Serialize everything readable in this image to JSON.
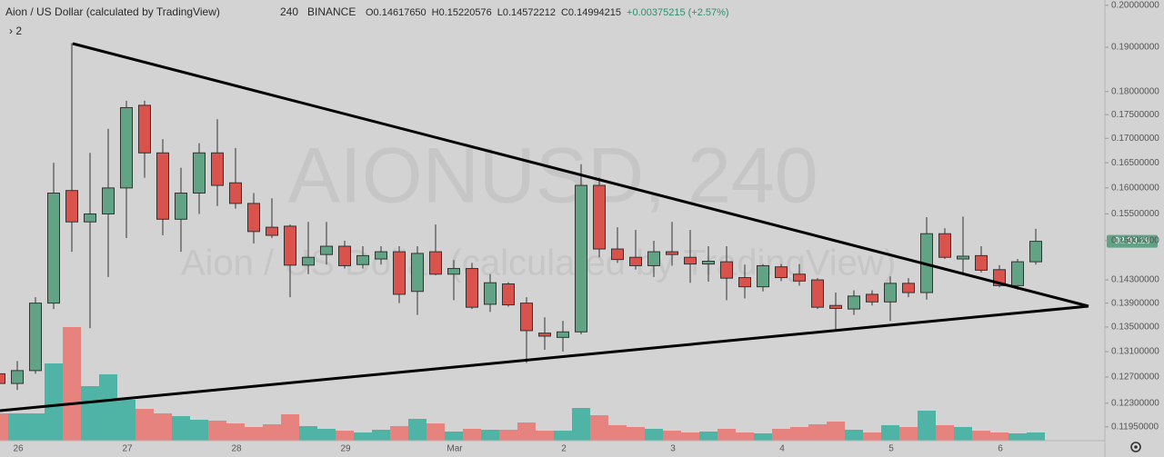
{
  "chart_data": {
    "type": "candlestick",
    "symbol": "Aion / US Dollar (calculated by TradingView)",
    "interval": "240",
    "exchange": "BINANCE",
    "ohlc_readout": [
      "O0.14617650",
      "H0.15220576",
      "L0.14572212",
      "C0.14994215",
      "+0.00375215 (+2.57%)"
    ],
    "indicator_toggle": "› 2",
    "watermark": "AIONUSD, 240",
    "watermark_sub": "Aion / US Dollar (calculated by TradingView)",
    "price_tag": "02:33:29",
    "log_scale": true,
    "grid": false,
    "up_color": "#62a386",
    "down_color": "#d9534c",
    "volume_up_color": "#4fb3a6",
    "volume_down_color": "#e6837e",
    "categories": [
      null,
      "26",
      null,
      null,
      null,
      null,
      null,
      "27",
      null,
      null,
      null,
      null,
      null,
      "28",
      null,
      null,
      null,
      null,
      null,
      "29",
      null,
      null,
      null,
      null,
      null,
      "Mar",
      null,
      null,
      null,
      null,
      null,
      "2",
      null,
      null,
      null,
      null,
      null,
      "3",
      null,
      null,
      null,
      null,
      null,
      "4",
      null,
      null,
      null,
      null,
      null,
      "5",
      null,
      null,
      null,
      null,
      null,
      "6",
      null,
      null
    ],
    "open": [
      0.1275,
      0.126,
      0.128,
      0.139,
      0.1595,
      0.1535,
      0.155,
      0.16,
      0.177,
      0.167,
      0.154,
      0.159,
      0.167,
      0.161,
      0.157,
      0.1525,
      0.1527,
      0.1456,
      0.1475,
      0.149,
      0.1457,
      0.1467,
      0.148,
      0.141,
      0.148,
      0.144,
      0.145,
      0.1388,
      0.1423,
      0.139,
      0.134,
      0.1333,
      0.1342,
      0.1605,
      0.1485,
      0.147,
      0.1455,
      0.148,
      0.147,
      0.1458,
      0.1462,
      0.1434,
      0.1418,
      0.1453,
      0.144,
      0.143,
      0.1386,
      0.138,
      0.1405,
      0.1392,
      0.1424,
      0.1408,
      0.1513,
      0.1467,
      0.1473,
      0.1448,
      0.142,
      0.1462
    ],
    "high": [
      0.129,
      0.1295,
      0.14,
      0.165,
      0.191,
      0.167,
      0.172,
      0.178,
      0.178,
      0.1698,
      0.164,
      0.169,
      0.174,
      0.168,
      0.159,
      0.158,
      0.153,
      0.1535,
      0.1535,
      0.15,
      0.149,
      0.149,
      0.149,
      0.149,
      0.153,
      0.1465,
      0.146,
      0.144,
      0.1426,
      0.14,
      0.1366,
      0.136,
      0.1647,
      0.162,
      0.1525,
      0.152,
      0.15,
      0.1535,
      0.152,
      0.149,
      0.149,
      0.1457,
      0.1458,
      0.1458,
      0.1458,
      0.1433,
      0.1408,
      0.1412,
      0.1412,
      0.1436,
      0.1433,
      0.1544,
      0.1523,
      0.1545,
      0.149,
      0.1456,
      0.1467,
      0.1522
    ],
    "low": [
      0.125,
      0.125,
      0.1275,
      0.138,
      0.148,
      0.1348,
      0.1435,
      0.1505,
      0.162,
      0.151,
      0.148,
      0.155,
      0.1565,
      0.156,
      0.1495,
      0.1505,
      0.14,
      0.144,
      0.1457,
      0.145,
      0.145,
      0.1457,
      0.139,
      0.137,
      0.1438,
      0.1395,
      0.138,
      0.1375,
      0.1384,
      0.1292,
      0.1313,
      0.131,
      0.1338,
      0.147,
      0.146,
      0.1448,
      0.1435,
      0.1455,
      0.1425,
      0.1427,
      0.1395,
      0.1398,
      0.141,
      0.1428,
      0.142,
      0.138,
      0.1346,
      0.137,
      0.1386,
      0.136,
      0.14,
      0.1396,
      0.1467,
      0.144,
      0.1443,
      0.1417,
      0.1413,
      0.1457
    ],
    "close": [
      0.126,
      0.128,
      0.139,
      0.159,
      0.1535,
      0.155,
      0.16,
      0.1765,
      0.167,
      0.154,
      0.159,
      0.167,
      0.1605,
      0.157,
      0.1517,
      0.151,
      0.1456,
      0.147,
      0.149,
      0.1455,
      0.1473,
      0.148,
      0.1405,
      0.1477,
      0.144,
      0.145,
      0.1383,
      0.1425,
      0.1387,
      0.1344,
      0.1335,
      0.1342,
      0.1605,
      0.1485,
      0.1466,
      0.1455,
      0.148,
      0.1475,
      0.1458,
      0.1463,
      0.1433,
      0.1418,
      0.1455,
      0.1434,
      0.1428,
      0.1383,
      0.1381,
      0.1402,
      0.1392,
      0.1424,
      0.1408,
      0.1513,
      0.147,
      0.1472,
      0.1447,
      0.142,
      0.1462,
      0.1499
    ],
    "volume": [
      30,
      30,
      30,
      85,
      125,
      60,
      73,
      45,
      35,
      30,
      27,
      23,
      22,
      19,
      15,
      18,
      29,
      16,
      13,
      11,
      9,
      12,
      16,
      24,
      19,
      10,
      13,
      12,
      12,
      20,
      11,
      11,
      36,
      28,
      17,
      15,
      13,
      11,
      9,
      10,
      13,
      9,
      8,
      13,
      15,
      18,
      21,
      12,
      9,
      17,
      15,
      33,
      17,
      15,
      11,
      9,
      8,
      9
    ],
    "ylim": [
      0.1175,
      0.2013
    ],
    "yticks": [
      {
        "value": 0.2,
        "label": "0.20000000"
      },
      {
        "value": 0.19,
        "label": "0.19000000"
      },
      {
        "value": 0.18,
        "label": "0.18000000"
      },
      {
        "value": 0.175,
        "label": "0.17500000"
      },
      {
        "value": 0.17,
        "label": "0.17000000"
      },
      {
        "value": 0.165,
        "label": "0.16500000"
      },
      {
        "value": 0.16,
        "label": "0.16000000"
      },
      {
        "value": 0.155,
        "label": "0.15500000"
      },
      {
        "value": 0.15,
        "label": "0.15000000"
      },
      {
        "value": 0.143,
        "label": "0.14300000"
      },
      {
        "value": 0.139,
        "label": "0.13900000"
      },
      {
        "value": 0.135,
        "label": "0.13500000"
      },
      {
        "value": 0.131,
        "label": "0.13100000"
      },
      {
        "value": 0.127,
        "label": "0.12700000"
      },
      {
        "value": 0.123,
        "label": "0.12300000"
      },
      {
        "value": 0.1195,
        "label": "0.11950000"
      }
    ]
  }
}
